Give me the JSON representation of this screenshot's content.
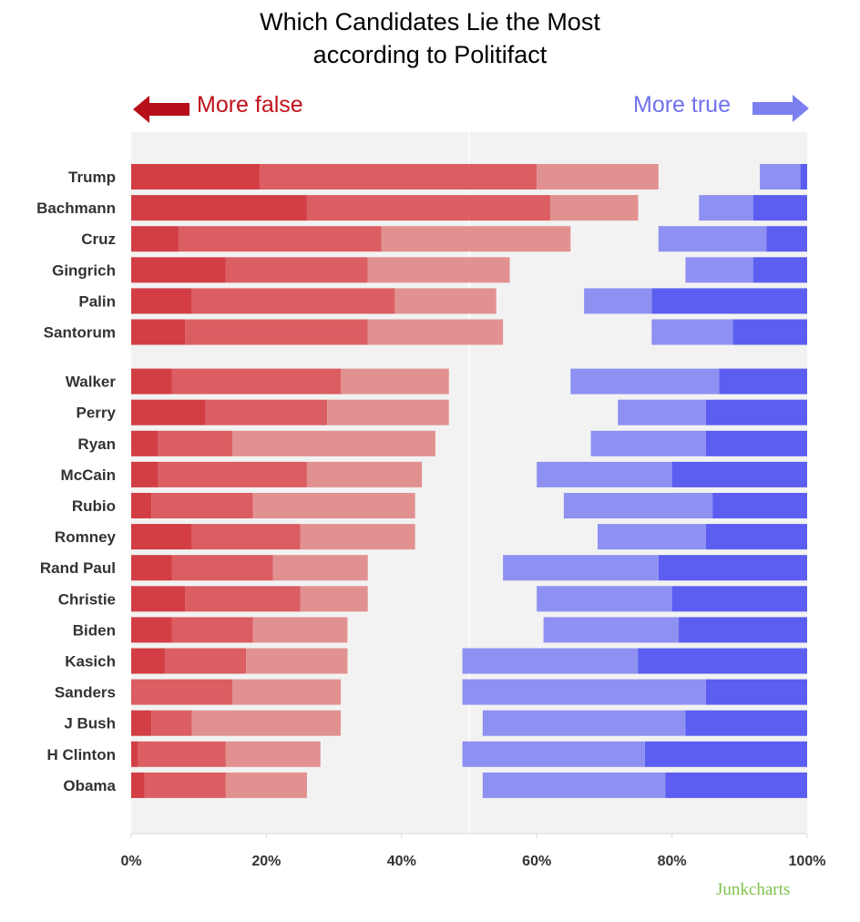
{
  "header": {
    "title_line1": "Which Candidates Lie the Most",
    "title_line2": "according to Politifact",
    "more_false": "More false",
    "more_true": "More true",
    "credit": "Junkcharts"
  },
  "colors": {
    "false_dark": "#d23e44",
    "false_mid": "#db5e62",
    "false_light": "#e29191",
    "true_light": "#8e90f2",
    "true_dark": "#5b5ef0",
    "plot_bg": "#f2f2f2",
    "arrow_false": "#b8101a",
    "arrow_true": "#7b7ff0"
  },
  "chart_data": {
    "type": "bar",
    "orientation": "horizontal",
    "stacked": true,
    "xlim": [
      0,
      100
    ],
    "x_ticks": [
      "0%",
      "20%",
      "40%",
      "60%",
      "80%",
      "100%"
    ],
    "categories": [
      "Trump",
      "Bachmann",
      "Cruz",
      "Gingrich",
      "Palin",
      "Santorum",
      "Walker",
      "Perry",
      "Ryan",
      "McCain",
      "Rubio",
      "Romney",
      "Rand Paul",
      "Christie",
      "Biden",
      "Kasich",
      "Sanders",
      "J Bush",
      "H Clinton",
      "Obama"
    ],
    "series_left": [
      {
        "values": [
          19,
          26,
          7,
          14,
          9,
          8,
          6,
          11,
          4,
          4,
          3,
          9,
          6,
          8,
          6,
          5,
          0,
          3,
          1,
          2
        ]
      },
      {
        "values": [
          41,
          36,
          30,
          21,
          30,
          27,
          25,
          18,
          11,
          22,
          15,
          16,
          15,
          17,
          12,
          12,
          15,
          6,
          13,
          12
        ]
      },
      {
        "values": [
          18,
          13,
          28,
          21,
          15,
          20,
          16,
          18,
          30,
          17,
          24,
          17,
          14,
          10,
          14,
          15,
          16,
          22,
          14,
          12
        ]
      }
    ],
    "series_right": [
      {
        "values": [
          6,
          8,
          16,
          10,
          10,
          12,
          22,
          13,
          17,
          20,
          22,
          16,
          23,
          20,
          20,
          26,
          36,
          30,
          27,
          27
        ]
      },
      {
        "values": [
          1,
          8,
          6,
          8,
          23,
          11,
          13,
          15,
          15,
          20,
          14,
          15,
          22,
          20,
          19,
          25,
          15,
          18,
          24,
          21
        ]
      }
    ]
  }
}
